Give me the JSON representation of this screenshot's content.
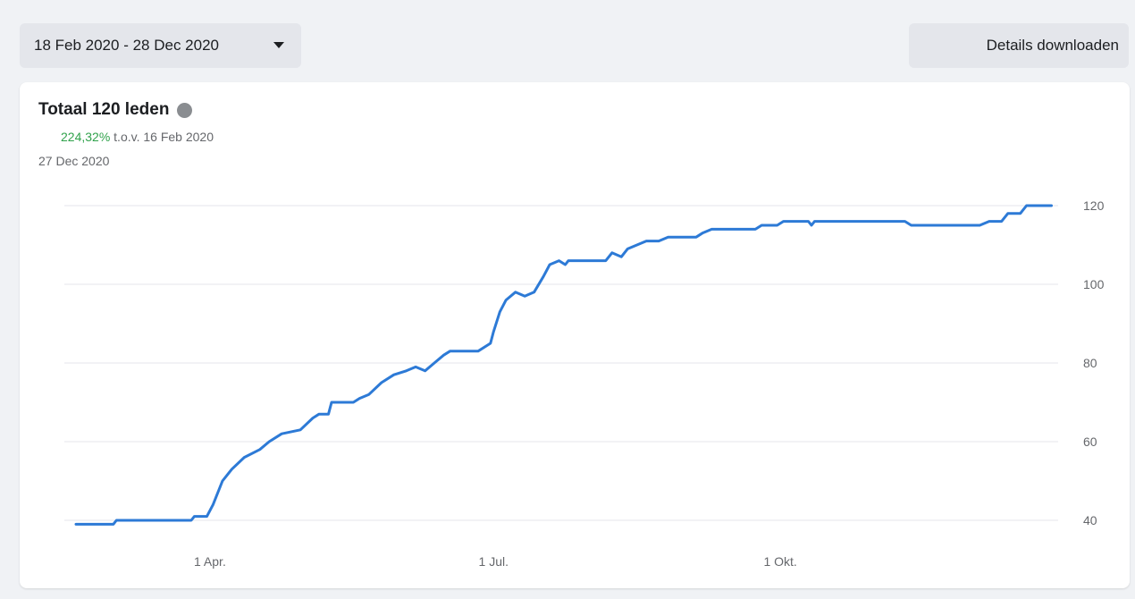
{
  "toolbar": {
    "date_range_label": "18 Feb 2020 - 28 Dec 2020",
    "download_label": "Details downloaden"
  },
  "card": {
    "title": "Totaal 120 leden",
    "change_percent": "224,32%",
    "change_reference": "t.o.v. 16 Feb 2020",
    "current_date": "27 Dec 2020"
  },
  "colors": {
    "line": "#2d7ad6",
    "change_positive": "#31a24c",
    "grid": "#e4e6eb"
  },
  "chart_data": {
    "type": "line",
    "title": "Totaal 120 leden",
    "xlabel": "",
    "ylabel": "",
    "x_range": [
      "2020-02-18",
      "2020-12-28"
    ],
    "ylim": [
      40,
      120
    ],
    "y_ticks": [
      40,
      60,
      80,
      100,
      120
    ],
    "x_ticks": [
      {
        "date": "2020-04-01",
        "label": "1 Apr."
      },
      {
        "date": "2020-07-01",
        "label": "1 Jul."
      },
      {
        "date": "2020-10-01",
        "label": "1 Okt."
      }
    ],
    "grid": true,
    "y_axis_side": "right",
    "series": [
      {
        "points": [
          [
            "2020-02-18",
            39
          ],
          [
            "2020-03-01",
            39
          ],
          [
            "2020-03-02",
            40
          ],
          [
            "2020-03-26",
            40
          ],
          [
            "2020-03-27",
            41
          ],
          [
            "2020-03-31",
            41
          ],
          [
            "2020-04-02",
            44
          ],
          [
            "2020-04-05",
            50
          ],
          [
            "2020-04-08",
            53
          ],
          [
            "2020-04-12",
            56
          ],
          [
            "2020-04-17",
            58
          ],
          [
            "2020-04-20",
            60
          ],
          [
            "2020-04-24",
            62
          ],
          [
            "2020-04-30",
            63
          ],
          [
            "2020-05-04",
            66
          ],
          [
            "2020-05-06",
            67
          ],
          [
            "2020-05-09",
            67
          ],
          [
            "2020-05-10",
            70
          ],
          [
            "2020-05-17",
            70
          ],
          [
            "2020-05-19",
            71
          ],
          [
            "2020-05-22",
            72
          ],
          [
            "2020-05-26",
            75
          ],
          [
            "2020-05-30",
            77
          ],
          [
            "2020-06-03",
            78
          ],
          [
            "2020-06-06",
            79
          ],
          [
            "2020-06-09",
            78
          ],
          [
            "2020-06-12",
            80
          ],
          [
            "2020-06-15",
            82
          ],
          [
            "2020-06-17",
            83
          ],
          [
            "2020-06-26",
            83
          ],
          [
            "2020-06-30",
            85
          ],
          [
            "2020-07-01",
            88
          ],
          [
            "2020-07-03",
            93
          ],
          [
            "2020-07-05",
            96
          ],
          [
            "2020-07-08",
            98
          ],
          [
            "2020-07-11",
            97
          ],
          [
            "2020-07-14",
            98
          ],
          [
            "2020-07-17",
            102
          ],
          [
            "2020-07-19",
            105
          ],
          [
            "2020-07-22",
            106
          ],
          [
            "2020-07-24",
            105
          ],
          [
            "2020-07-25",
            106
          ],
          [
            "2020-08-06",
            106
          ],
          [
            "2020-08-08",
            108
          ],
          [
            "2020-08-11",
            107
          ],
          [
            "2020-08-13",
            109
          ],
          [
            "2020-08-16",
            110
          ],
          [
            "2020-08-19",
            111
          ],
          [
            "2020-08-23",
            111
          ],
          [
            "2020-08-26",
            112
          ],
          [
            "2020-09-04",
            112
          ],
          [
            "2020-09-06",
            113
          ],
          [
            "2020-09-09",
            114
          ],
          [
            "2020-09-23",
            114
          ],
          [
            "2020-09-25",
            115
          ],
          [
            "2020-09-30",
            115
          ],
          [
            "2020-10-02",
            116
          ],
          [
            "2020-10-10",
            116
          ],
          [
            "2020-10-11",
            115
          ],
          [
            "2020-10-12",
            116
          ],
          [
            "2020-11-10",
            116
          ],
          [
            "2020-11-12",
            115
          ],
          [
            "2020-12-04",
            115
          ],
          [
            "2020-12-07",
            116
          ],
          [
            "2020-12-11",
            116
          ],
          [
            "2020-12-13",
            118
          ],
          [
            "2020-12-17",
            118
          ],
          [
            "2020-12-19",
            120
          ],
          [
            "2020-12-27",
            120
          ]
        ]
      }
    ]
  }
}
